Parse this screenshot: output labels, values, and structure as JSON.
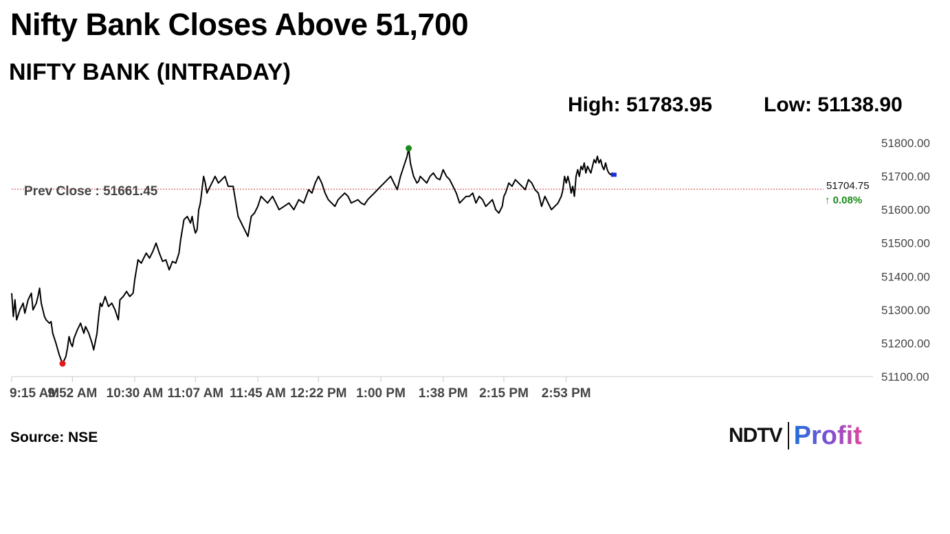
{
  "header": {
    "headline": "Nifty Bank Closes Above 51,700",
    "subtitle": "NIFTY BANK (INTRADAY)",
    "high": "High: 51783.95",
    "low": "Low: 51138.90"
  },
  "footer": {
    "source": "Source: NSE",
    "brand": "NDTV",
    "product": "Profit"
  },
  "colors": {
    "line": "#000000",
    "prev_close_line": "#d63b3b",
    "high_marker": "#1a8a1a",
    "low_marker": "#e01b1b",
    "last_marker": "#1a2fd6",
    "change_positive": "#1a8a1a",
    "axis_text": "#444444"
  },
  "chart_data": {
    "type": "line",
    "title": "NIFTY BANK (INTRADAY)",
    "xlabel": "",
    "ylabel": "",
    "ylim": [
      51100,
      51800
    ],
    "xlim_minutes": [
      555,
      1080
    ],
    "y_ticks": [
      51100,
      51200,
      51300,
      51400,
      51500,
      51600,
      51700,
      51800
    ],
    "y_tick_labels": [
      "51100.00",
      "51200.00",
      "51300.00",
      "51400.00",
      "51500.00",
      "51600.00",
      "51700.00",
      "51800.00"
    ],
    "x_ticks": [
      555,
      592,
      630,
      667,
      705,
      742,
      780,
      818,
      855,
      893
    ],
    "x_tick_labels": [
      "9:15 AM",
      "9:52 AM",
      "10:30 AM",
      "11:07 AM",
      "11:45 AM",
      "12:22 PM",
      "1:00 PM",
      "1:38 PM",
      "2:15 PM",
      "2:53 PM"
    ],
    "prev_close": 51661.45,
    "prev_close_label": "Prev Close : 51661.45",
    "high": 51783.95,
    "low": 51138.9,
    "last_value_label": "51704.75",
    "change_label": "0.08%",
    "grid": false,
    "series": [
      {
        "x": [
          555,
          556,
          557,
          558,
          560,
          562,
          563,
          565,
          567,
          568,
          570,
          571,
          572,
          573,
          575,
          576,
          578,
          579,
          580,
          582,
          584,
          586,
          588,
          589,
          590,
          591,
          592,
          593,
          595,
          597,
          599,
          600,
          602,
          604,
          605,
          607,
          608,
          609,
          610,
          612,
          614,
          616,
          618,
          620,
          621,
          623,
          625,
          627,
          629,
          630,
          632,
          634,
          636,
          637,
          639,
          641,
          643,
          645,
          647,
          649,
          651,
          653,
          655,
          657,
          658,
          660,
          662,
          664,
          665,
          666,
          667,
          668,
          669,
          670,
          672,
          673,
          674,
          676,
          678,
          679,
          681,
          683,
          685,
          687,
          690,
          692,
          693,
          695,
          697,
          699,
          701,
          703,
          705,
          707,
          709,
          711,
          714,
          716,
          718,
          721,
          724,
          727,
          730,
          733,
          736,
          738,
          740,
          742,
          744,
          746,
          748,
          750,
          752,
          754,
          756,
          758,
          760,
          762,
          764,
          766,
          768,
          770,
          772,
          774,
          776,
          778,
          780,
          782,
          784,
          786,
          788,
          790,
          792,
          794,
          796,
          797,
          798,
          799,
          800,
          801,
          802,
          803,
          804,
          806,
          808,
          810,
          812,
          814,
          816,
          818,
          820,
          822,
          824,
          826,
          828,
          830,
          832,
          834,
          836,
          838,
          840,
          842,
          844,
          846,
          848,
          850,
          852,
          854,
          855,
          856,
          858,
          860,
          862,
          864,
          866,
          868,
          870,
          872,
          874,
          876,
          878,
          880,
          882,
          884,
          886,
          888,
          890,
          891,
          892,
          893,
          894,
          895,
          896,
          897,
          898,
          899,
          900,
          901,
          902,
          903,
          904,
          905,
          906,
          907,
          908,
          909,
          910,
          911,
          912,
          913,
          914,
          915,
          916,
          917,
          918,
          919,
          920,
          921,
          922
        ],
        "values": [
          51350,
          51280,
          51330,
          51270,
          51300,
          51320,
          51290,
          51330,
          51350,
          51300,
          51320,
          51340,
          51365,
          51320,
          51280,
          51270,
          51260,
          51265,
          51230,
          51200,
          51165,
          51139,
          51160,
          51185,
          51220,
          51200,
          51190,
          51215,
          51240,
          51260,
          51230,
          51250,
          51230,
          51200,
          51180,
          51230,
          51280,
          51320,
          51310,
          51340,
          51310,
          51320,
          51300,
          51270,
          51330,
          51340,
          51355,
          51340,
          51350,
          51390,
          51450,
          51440,
          51460,
          51470,
          51455,
          51475,
          51500,
          51470,
          51445,
          51450,
          51420,
          51445,
          51440,
          51470,
          51510,
          51570,
          51580,
          51560,
          51580,
          51550,
          51530,
          51540,
          51600,
          51620,
          51700,
          51680,
          51650,
          51670,
          51690,
          51700,
          51680,
          51690,
          51700,
          51670,
          51670,
          51610,
          51580,
          51560,
          51540,
          51520,
          51580,
          51590,
          51610,
          51640,
          51630,
          51620,
          51640,
          51620,
          51600,
          51610,
          51620,
          51600,
          51630,
          51620,
          51660,
          51650,
          51680,
          51700,
          51680,
          51650,
          51630,
          51620,
          51610,
          51630,
          51640,
          51650,
          51640,
          51620,
          51625,
          51630,
          51620,
          51615,
          51630,
          51640,
          51650,
          51660,
          51670,
          51680,
          51690,
          51700,
          51680,
          51660,
          51700,
          51730,
          51760,
          51784,
          51740,
          51720,
          51700,
          51690,
          51680,
          51685,
          51700,
          51690,
          51680,
          51700,
          51710,
          51695,
          51690,
          51720,
          51700,
          51690,
          51670,
          51650,
          51620,
          51630,
          51640,
          51640,
          51650,
          51620,
          51640,
          51630,
          51610,
          51620,
          51630,
          51600,
          51590,
          51610,
          51640,
          51650,
          51680,
          51670,
          51690,
          51680,
          51670,
          51660,
          51690,
          51680,
          51660,
          51650,
          51610,
          51640,
          51620,
          51600,
          51610,
          51620,
          51640,
          51660,
          51700,
          51680,
          51700,
          51680,
          51650,
          51670,
          51640,
          51700,
          51720,
          51700,
          51730,
          51720,
          51740,
          51710,
          51730,
          51720,
          51710,
          51730,
          51750,
          51740,
          51760,
          51740,
          51750,
          51730,
          51720,
          51740,
          51720,
          51710,
          51705,
          51710,
          51704.75
        ]
      }
    ]
  }
}
